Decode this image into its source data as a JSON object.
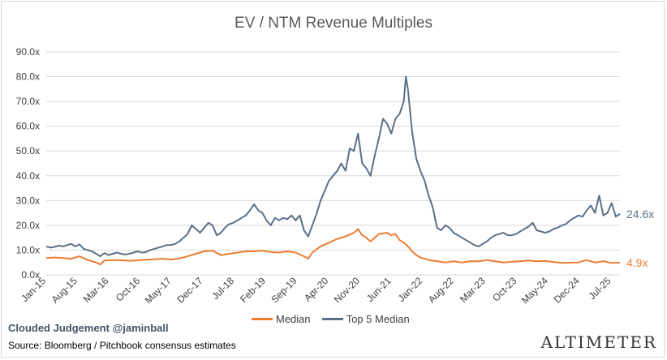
{
  "chart_data": {
    "type": "line",
    "title": "EV / NTM Revenue Multiples",
    "ylim": [
      0,
      90
    ],
    "y_ticks": [
      "0.0x",
      "10.0x",
      "20.0x",
      "30.0x",
      "40.0x",
      "50.0x",
      "60.0x",
      "70.0x",
      "80.0x",
      "90.0x"
    ],
    "x_tick_labels": [
      "Jan-15",
      "Aug-15",
      "Mar-16",
      "Oct-16",
      "May-17",
      "Dec-17",
      "Jul-18",
      "Feb-19",
      "Sep-19",
      "Apr-20",
      "Nov-20",
      "Jun-21",
      "Jan-22",
      "Aug-22",
      "Mar-23",
      "Oct-23",
      "May-24",
      "Dec-24",
      "Jul-25"
    ],
    "grid": true,
    "legend_position": "bottom",
    "series": [
      {
        "name": "Median",
        "color": "#ed7d31",
        "end_label": "4.9x",
        "points": [
          [
            0,
            6.8
          ],
          [
            2,
            7.0
          ],
          [
            4,
            6.8
          ],
          [
            6,
            6.5
          ],
          [
            8,
            7.5
          ],
          [
            10,
            6.0
          ],
          [
            12,
            5.0
          ],
          [
            13,
            4.2
          ],
          [
            14,
            5.8
          ],
          [
            16,
            6.0
          ],
          [
            18,
            5.9
          ],
          [
            20,
            5.7
          ],
          [
            22,
            5.9
          ],
          [
            24,
            6.1
          ],
          [
            26,
            6.3
          ],
          [
            28,
            6.5
          ],
          [
            30,
            6.2
          ],
          [
            32,
            6.6
          ],
          [
            34,
            7.5
          ],
          [
            36,
            8.5
          ],
          [
            38,
            9.5
          ],
          [
            40,
            9.8
          ],
          [
            42,
            8.0
          ],
          [
            44,
            8.5
          ],
          [
            46,
            9.0
          ],
          [
            48,
            9.5
          ],
          [
            50,
            9.5
          ],
          [
            52,
            9.8
          ],
          [
            54,
            9.2
          ],
          [
            56,
            9.0
          ],
          [
            58,
            9.5
          ],
          [
            60,
            9.0
          ],
          [
            62,
            7.5
          ],
          [
            63,
            6.5
          ],
          [
            64,
            9.0
          ],
          [
            66,
            11.5
          ],
          [
            68,
            13.0
          ],
          [
            70,
            14.5
          ],
          [
            72,
            15.5
          ],
          [
            74,
            17.0
          ],
          [
            75,
            18.5
          ],
          [
            76,
            16.0
          ],
          [
            77,
            15.0
          ],
          [
            78,
            13.5
          ],
          [
            79,
            15.0
          ],
          [
            80,
            16.5
          ],
          [
            82,
            17.0
          ],
          [
            83,
            16.0
          ],
          [
            84,
            16.5
          ],
          [
            85,
            14.0
          ],
          [
            86,
            13.0
          ],
          [
            87,
            11.5
          ],
          [
            88,
            9.5
          ],
          [
            89,
            8.0
          ],
          [
            90,
            7.0
          ],
          [
            92,
            6.0
          ],
          [
            94,
            5.5
          ],
          [
            96,
            5.0
          ],
          [
            98,
            5.5
          ],
          [
            100,
            5.0
          ],
          [
            102,
            5.5
          ],
          [
            104,
            5.5
          ],
          [
            106,
            6.0
          ],
          [
            108,
            5.5
          ],
          [
            110,
            5.0
          ],
          [
            112,
            5.3
          ],
          [
            114,
            5.5
          ],
          [
            116,
            5.8
          ],
          [
            118,
            5.5
          ],
          [
            120,
            5.6
          ],
          [
            122,
            5.2
          ],
          [
            124,
            4.8
          ],
          [
            126,
            4.9
          ],
          [
            128,
            5.0
          ],
          [
            129,
            5.5
          ],
          [
            130,
            6.0
          ],
          [
            131,
            5.5
          ],
          [
            132,
            5.0
          ],
          [
            134,
            5.5
          ],
          [
            136,
            4.8
          ],
          [
            138,
            4.9
          ]
        ]
      },
      {
        "name": "Top 5 Median",
        "color": "#5a7088",
        "end_label": "24.6x",
        "points": [
          [
            0,
            11.5
          ],
          [
            1,
            11.0
          ],
          [
            2,
            11.3
          ],
          [
            3,
            11.8
          ],
          [
            4,
            11.5
          ],
          [
            5,
            12.0
          ],
          [
            6,
            12.5
          ],
          [
            7,
            11.5
          ],
          [
            8,
            12.3
          ],
          [
            9,
            10.5
          ],
          [
            10,
            10.0
          ],
          [
            11,
            9.5
          ],
          [
            12,
            8.5
          ],
          [
            13,
            7.5
          ],
          [
            14,
            8.8
          ],
          [
            15,
            8.0
          ],
          [
            16,
            8.5
          ],
          [
            17,
            9.0
          ],
          [
            18,
            8.5
          ],
          [
            19,
            8.2
          ],
          [
            20,
            8.5
          ],
          [
            21,
            9.0
          ],
          [
            22,
            9.5
          ],
          [
            23,
            9.0
          ],
          [
            24,
            9.2
          ],
          [
            25,
            10.0
          ],
          [
            26,
            10.5
          ],
          [
            27,
            11.0
          ],
          [
            28,
            11.5
          ],
          [
            29,
            12.0
          ],
          [
            30,
            12.0
          ],
          [
            31,
            12.5
          ],
          [
            32,
            13.5
          ],
          [
            33,
            15.0
          ],
          [
            34,
            16.5
          ],
          [
            35,
            20.0
          ],
          [
            36,
            18.5
          ],
          [
            37,
            17.0
          ],
          [
            38,
            19.0
          ],
          [
            39,
            21.0
          ],
          [
            40,
            20.0
          ],
          [
            41,
            16.0
          ],
          [
            42,
            17.0
          ],
          [
            43,
            19.0
          ],
          [
            44,
            20.5
          ],
          [
            45,
            21.0
          ],
          [
            46,
            22.0
          ],
          [
            47,
            23.0
          ],
          [
            48,
            24.0
          ],
          [
            49,
            26.0
          ],
          [
            50,
            28.5
          ],
          [
            51,
            26.0
          ],
          [
            52,
            25.0
          ],
          [
            53,
            22.0
          ],
          [
            54,
            20.0
          ],
          [
            55,
            23.0
          ],
          [
            56,
            22.0
          ],
          [
            57,
            23.0
          ],
          [
            58,
            22.5
          ],
          [
            59,
            24.0
          ],
          [
            60,
            22.0
          ],
          [
            61,
            24.0
          ],
          [
            62,
            18.0
          ],
          [
            63,
            15.5
          ],
          [
            64,
            20.0
          ],
          [
            65,
            24.5
          ],
          [
            66,
            30.0
          ],
          [
            67,
            34.0
          ],
          [
            68,
            38.0
          ],
          [
            69,
            40.0
          ],
          [
            70,
            42.0
          ],
          [
            71,
            45.0
          ],
          [
            72,
            42.0
          ],
          [
            73,
            51.0
          ],
          [
            74,
            50.0
          ],
          [
            75,
            57.0
          ],
          [
            76,
            45.0
          ],
          [
            77,
            43.0
          ],
          [
            78,
            40.0
          ],
          [
            79,
            48.0
          ],
          [
            80,
            55.0
          ],
          [
            81,
            63.0
          ],
          [
            82,
            61.0
          ],
          [
            83,
            57.0
          ],
          [
            84,
            63.0
          ],
          [
            85,
            65.0
          ],
          [
            86,
            70.0
          ],
          [
            86.5,
            80.0
          ],
          [
            87,
            75.0
          ],
          [
            88,
            58.0
          ],
          [
            89,
            47.0
          ],
          [
            90,
            42.0
          ],
          [
            91,
            38.0
          ],
          [
            92,
            32.0
          ],
          [
            93,
            27.0
          ],
          [
            94,
            19.0
          ],
          [
            95,
            18.0
          ],
          [
            96,
            20.0
          ],
          [
            97,
            19.0
          ],
          [
            98,
            17.0
          ],
          [
            99,
            16.0
          ],
          [
            100,
            15.0
          ],
          [
            101,
            14.0
          ],
          [
            102,
            13.0
          ],
          [
            103,
            12.0
          ],
          [
            104,
            11.5
          ],
          [
            105,
            12.5
          ],
          [
            106,
            13.5
          ],
          [
            107,
            15.0
          ],
          [
            108,
            16.0
          ],
          [
            109,
            16.5
          ],
          [
            110,
            17.0
          ],
          [
            111,
            16.0
          ],
          [
            112,
            16.0
          ],
          [
            113,
            16.5
          ],
          [
            114,
            17.5
          ],
          [
            115,
            18.5
          ],
          [
            116,
            19.5
          ],
          [
            117,
            21.0
          ],
          [
            118,
            18.0
          ],
          [
            119,
            17.5
          ],
          [
            120,
            17.0
          ],
          [
            121,
            17.5
          ],
          [
            122,
            18.5
          ],
          [
            123,
            19.0
          ],
          [
            124,
            20.0
          ],
          [
            125,
            20.5
          ],
          [
            126,
            22.0
          ],
          [
            127,
            23.0
          ],
          [
            128,
            24.0
          ],
          [
            129,
            23.5
          ],
          [
            130,
            26.0
          ],
          [
            131,
            28.0
          ],
          [
            132,
            25.0
          ],
          [
            133,
            32.0
          ],
          [
            134,
            24.0
          ],
          [
            135,
            25.0
          ],
          [
            136,
            29.0
          ],
          [
            137,
            23.5
          ],
          [
            138,
            24.6
          ]
        ]
      }
    ]
  },
  "footer": {
    "brand": "Clouded Judgement @jaminball",
    "source": "Source: Bloomberg / Pitchbook consensus estimates",
    "logo": "ALTIMETER"
  }
}
